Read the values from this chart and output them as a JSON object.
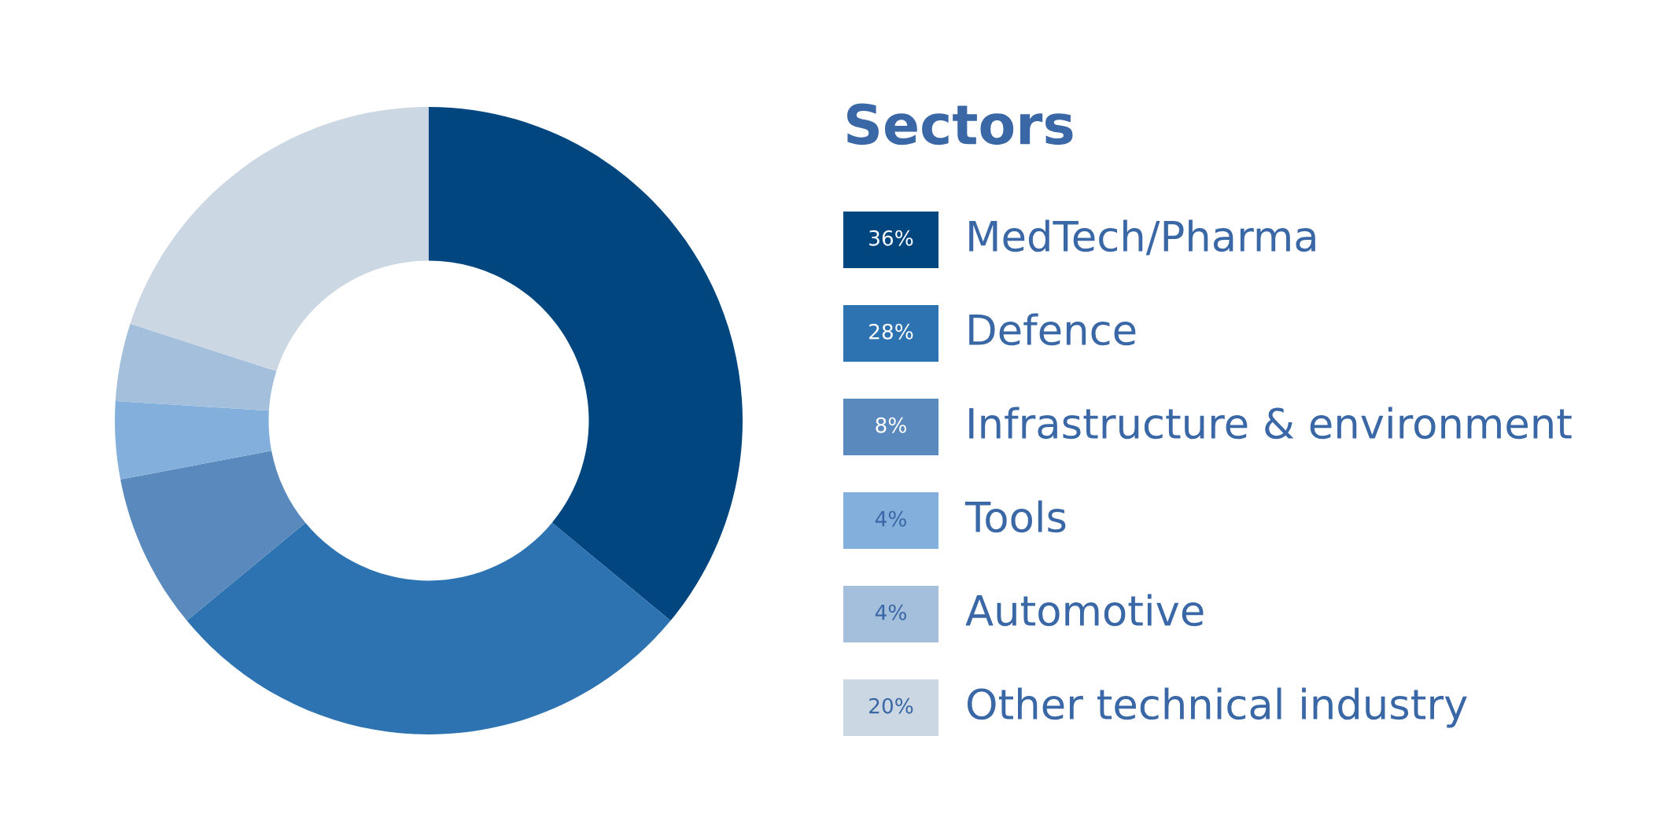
{
  "chart_data": {
    "type": "donut",
    "legend_title": "Sectors",
    "categories": [
      "MedTech/Pharma",
      "Defence",
      "Infrastructure & environment",
      "Tools",
      "Automotive",
      "Other technical industry"
    ],
    "values": [
      36,
      28,
      8,
      4,
      4,
      20
    ],
    "colors": [
      "#024680",
      "#2e73b1",
      "#5a8abd",
      "#82afdc",
      "#a3bfdc",
      "#cbd7e3"
    ],
    "value_labels": [
      "36%",
      "28%",
      "8%",
      "4%",
      "4%",
      "20%"
    ],
    "legend": "right"
  }
}
